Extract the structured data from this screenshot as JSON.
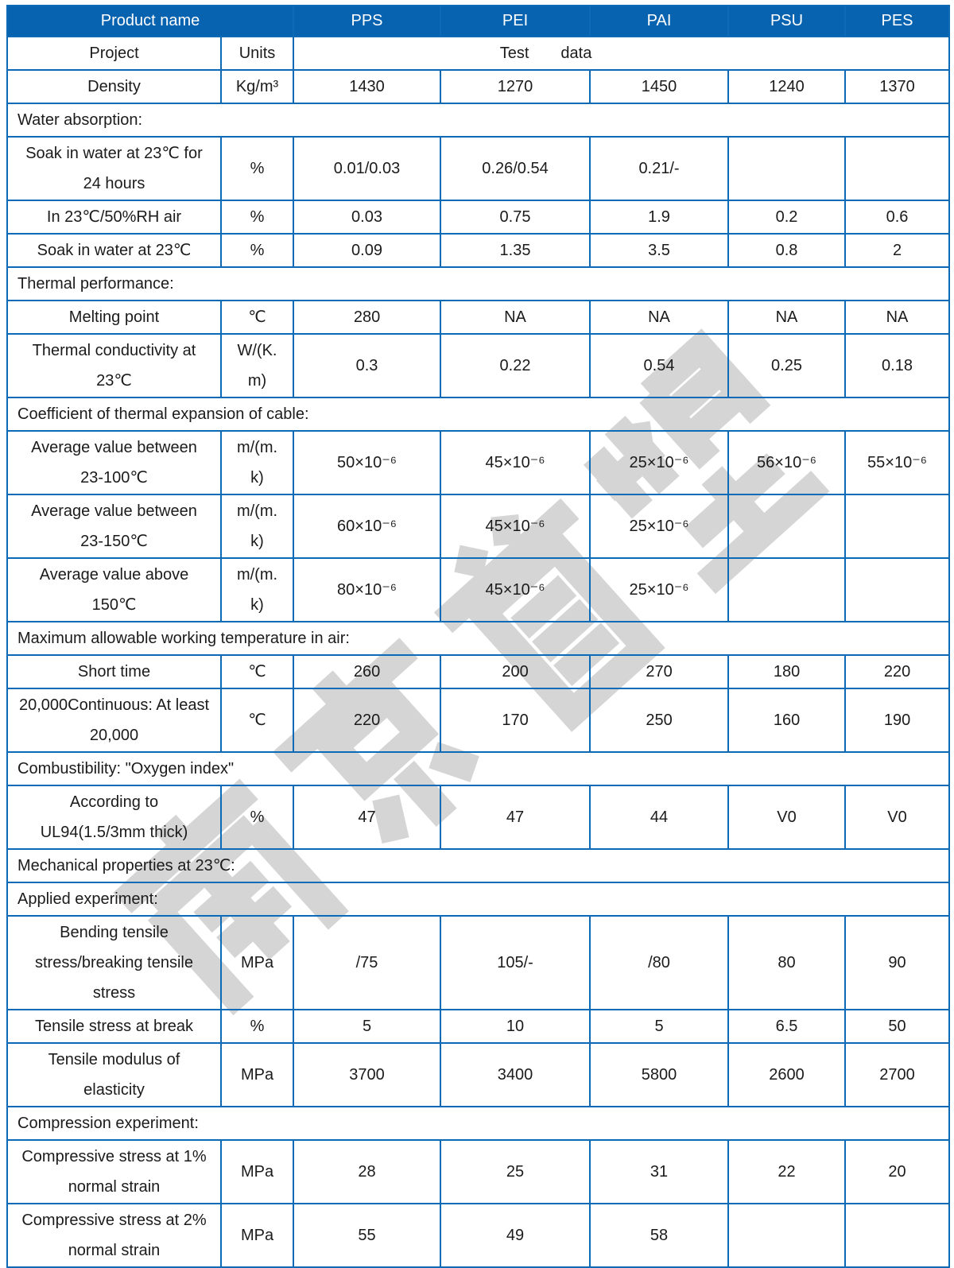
{
  "watermark": {
    "text": "南京首塑"
  },
  "header": {
    "product_name": "Product name",
    "columns": [
      "PPS",
      "PEI",
      "PAI",
      "PSU",
      "PES"
    ]
  },
  "subheader": {
    "project": "Project",
    "units": "Units",
    "test": "Test",
    "data": "data"
  },
  "colors": {
    "header_fill": "#0763b0",
    "border_blue": "#0d6ab6",
    "watermark_gray": "#d5d5d5"
  },
  "rows": [
    {
      "type": "data",
      "label": "Density",
      "unit": "Kg/m³",
      "values": [
        "1430",
        "1270",
        "1450",
        "1240",
        "1370"
      ]
    },
    {
      "type": "section",
      "label": "Water absorption:"
    },
    {
      "type": "data",
      "label": "Soak in water at 23℃ for\n24 hours",
      "unit": "%",
      "values": [
        "0.01/0.03",
        "0.26/0.54",
        "0.21/-",
        "",
        ""
      ]
    },
    {
      "type": "data",
      "label": "In 23℃/50%RH air",
      "unit": "%",
      "values": [
        "0.03",
        "0.75",
        "1.9",
        "0.2",
        "0.6"
      ]
    },
    {
      "type": "data",
      "label": "Soak in water at 23℃",
      "unit": "%",
      "values": [
        "0.09",
        "1.35",
        "3.5",
        "0.8",
        "2"
      ]
    },
    {
      "type": "section",
      "label": "Thermal performance:"
    },
    {
      "type": "data",
      "label": "Melting point",
      "unit": "℃",
      "values": [
        "280",
        "NA",
        "NA",
        "NA",
        "NA"
      ]
    },
    {
      "type": "data",
      "label": "Thermal conductivity at\n23℃",
      "unit": "W/(K.\nm)",
      "values": [
        "0.3",
        "0.22",
        "0.54",
        "0.25",
        "0.18"
      ]
    },
    {
      "type": "section",
      "label": "Coefficient of thermal expansion of cable:"
    },
    {
      "type": "data",
      "label": "Average value between\n23-100℃",
      "unit": "m/(m.\nk)",
      "values": [
        "50×10⁻⁶",
        "45×10⁻⁶",
        "25×10⁻⁶",
        "56×10⁻⁶",
        "55×10⁻⁶"
      ]
    },
    {
      "type": "data",
      "label": "Average value between\n23-150℃",
      "unit": "m/(m.\nk)",
      "values": [
        "60×10⁻⁶",
        "45×10⁻⁶",
        "25×10⁻⁶",
        "",
        ""
      ]
    },
    {
      "type": "data",
      "label": "Average value above\n150℃",
      "unit": "m/(m.\nk)",
      "values": [
        "80×10⁻⁶",
        "45×10⁻⁶",
        "25×10⁻⁶",
        "",
        ""
      ]
    },
    {
      "type": "section",
      "label": "Maximum allowable working temperature in air:"
    },
    {
      "type": "data",
      "label": "Short time",
      "unit": "℃",
      "values": [
        "260",
        "200",
        "270",
        "180",
        "220"
      ]
    },
    {
      "type": "data",
      "label": "20,000Continuous: At least\n20,000",
      "unit": "℃",
      "values": [
        "220",
        "170",
        "250",
        "160",
        "190"
      ]
    },
    {
      "type": "section",
      "label": "Combustibility: \"Oxygen index\""
    },
    {
      "type": "data",
      "label": "According to\nUL94(1.5/3mm thick)",
      "unit": "%",
      "values": [
        "47",
        "47",
        "44",
        "V0",
        "V0"
      ]
    },
    {
      "type": "section",
      "label": "Mechanical properties at 23℃:"
    },
    {
      "type": "section",
      "label": "Applied experiment:"
    },
    {
      "type": "data",
      "label": "Bending tensile\nstress/breaking tensile\nstress",
      "unit": "MPa",
      "values": [
        "/75",
        "105/-",
        "/80",
        "80",
        "90"
      ]
    },
    {
      "type": "data",
      "label": "Tensile stress at break",
      "unit": "%",
      "values": [
        "5",
        "10",
        "5",
        "6.5",
        "50"
      ]
    },
    {
      "type": "data",
      "label": "Tensile modulus of\nelasticity",
      "unit": "MPa",
      "values": [
        "3700",
        "3400",
        "5800",
        "2600",
        "2700"
      ]
    },
    {
      "type": "section",
      "label": "Compression experiment:"
    },
    {
      "type": "data",
      "label": "Compressive stress at 1%\nnormal strain",
      "unit": "MPa",
      "values": [
        "28",
        "25",
        "31",
        "22",
        "20"
      ]
    },
    {
      "type": "data",
      "label": "Compressive stress at 2%\nnormal strain",
      "unit": "MPa",
      "values": [
        "55",
        "49",
        "58",
        "",
        ""
      ]
    }
  ]
}
